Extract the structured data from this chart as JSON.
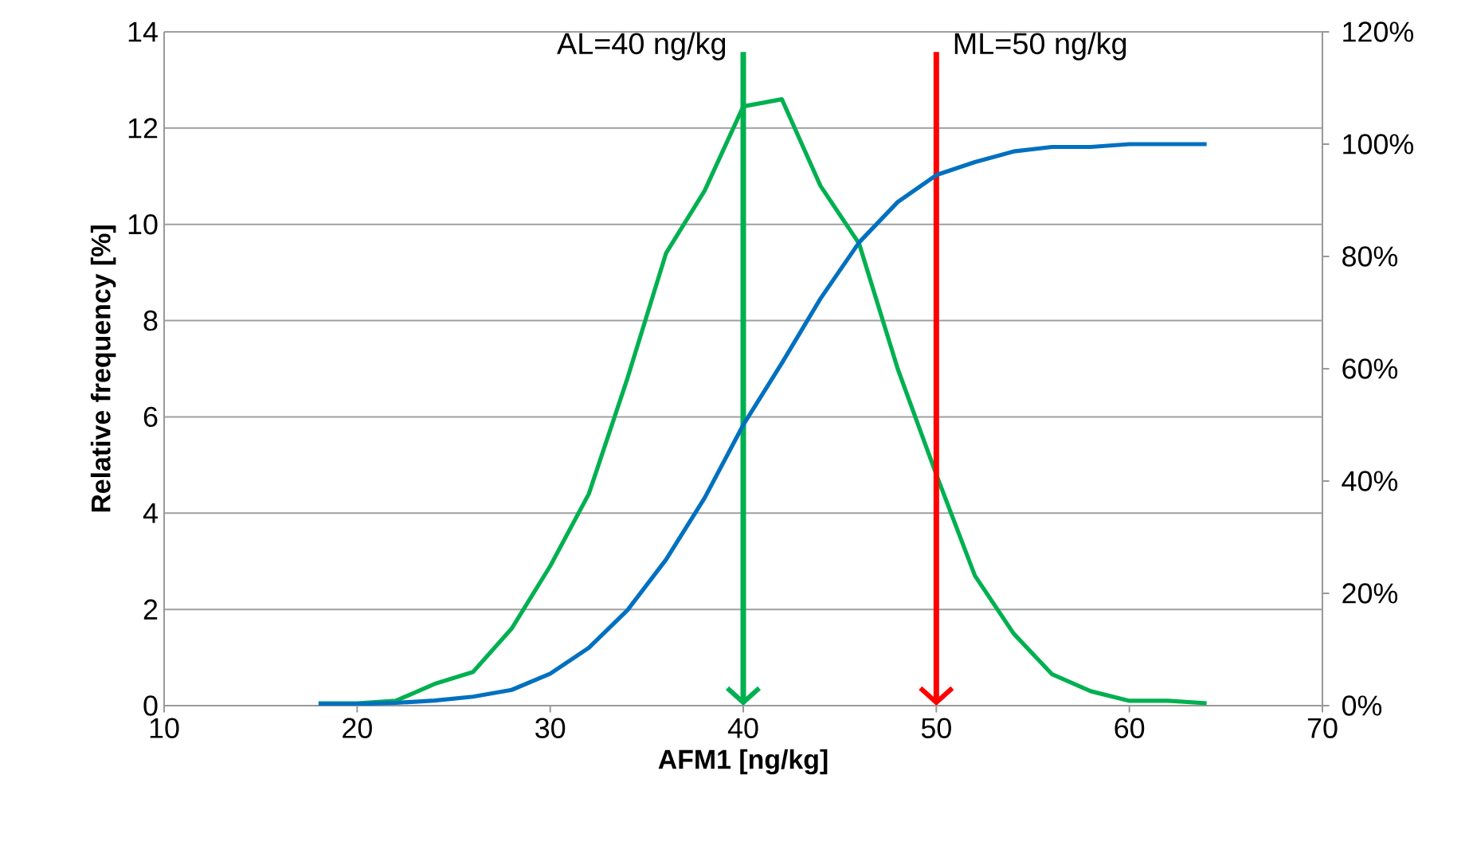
{
  "chart_data": {
    "type": "line",
    "xlabel": "AFM1 [ng/kg]",
    "ylabel": "Relative frequency [%]",
    "xlim": [
      10,
      70
    ],
    "xticks": [
      10,
      20,
      30,
      40,
      50,
      60,
      70
    ],
    "ylim": [
      0,
      14
    ],
    "yticks": [
      0,
      2,
      4,
      6,
      8,
      10,
      12,
      14
    ],
    "y2lim": [
      0,
      120
    ],
    "y2ticks": [
      {
        "value": 0,
        "label": "0%"
      },
      {
        "value": 20,
        "label": "20%"
      },
      {
        "value": 40,
        "label": "40%"
      },
      {
        "value": 60,
        "label": "60%"
      },
      {
        "value": 80,
        "label": "80%"
      },
      {
        "value": 100,
        "label": "100%"
      },
      {
        "value": 120,
        "label": "120%"
      }
    ],
    "grid": "y",
    "marker": "none",
    "line_style": "solid",
    "series": [
      {
        "color": "#00b050",
        "x": [
          18,
          20,
          22,
          24,
          26,
          28,
          30,
          32,
          34,
          36,
          38,
          40,
          42,
          44,
          46,
          48,
          50,
          52,
          54,
          56,
          58,
          60,
          62,
          64
        ],
        "values": [
          0.05,
          0.05,
          0.1,
          0.45,
          0.7,
          1.6,
          2.9,
          4.4,
          6.8,
          9.4,
          10.7,
          12.45,
          12.6,
          10.8,
          9.6,
          7.0,
          4.8,
          2.7,
          1.5,
          0.65,
          0.3,
          0.1,
          0.1,
          0.05
        ]
      },
      {
        "color": "#0070c0",
        "axis": "y2",
        "x": [
          18,
          20,
          22,
          24,
          26,
          28,
          30,
          32,
          34,
          36,
          38,
          40,
          42,
          44,
          46,
          48,
          50,
          52,
          54,
          56,
          58,
          60,
          62,
          64
        ],
        "values": [
          0.3,
          0.3,
          0.5,
          0.9,
          1.6,
          2.8,
          5.7,
          10.3,
          17,
          26,
          37,
          50,
          61,
          72.5,
          82.5,
          89.7,
          94.5,
          96.8,
          98.7,
          99.5,
          99.5,
          100,
          100,
          100
        ]
      }
    ],
    "ref_lines": [
      {
        "axis": "x",
        "value": 40,
        "label": "AL=40 ng/kg",
        "color": "#00b050"
      },
      {
        "axis": "x",
        "value": 50,
        "label": "ML=50 ng/kg",
        "color": "#ff0000"
      }
    ]
  }
}
